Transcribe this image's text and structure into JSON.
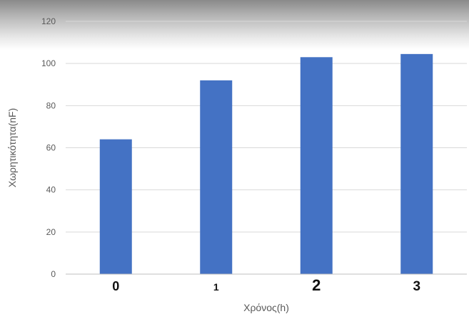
{
  "chart_data": {
    "type": "bar",
    "title": "",
    "xlabel": "Χρόνος(h)",
    "ylabel": "Χωρητικότητα(nF)",
    "categories": [
      "0",
      "1",
      "2",
      "3"
    ],
    "values": [
      64,
      92,
      103,
      104.5
    ],
    "ylim": [
      0,
      120
    ],
    "yticks": [
      0,
      20,
      40,
      60,
      80,
      100,
      120
    ],
    "grid": true,
    "legend": "none",
    "bar_color": "#4472C4",
    "grid_color": "#d9d9d9"
  }
}
